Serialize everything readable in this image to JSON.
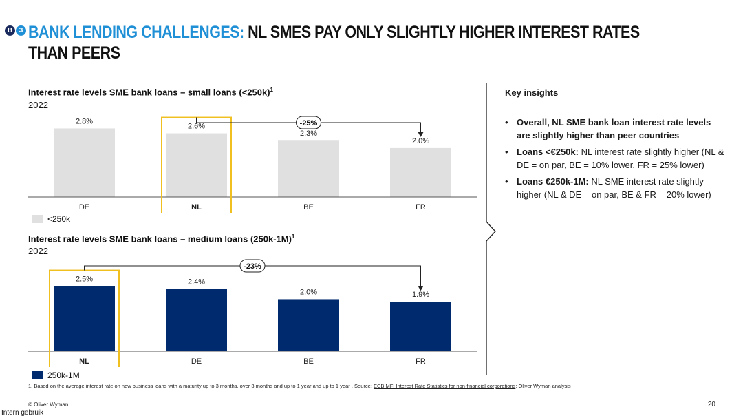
{
  "header": {
    "badge_letter": "B",
    "badge_number": "3",
    "title_accent": "BANK LENDING CHALLENGES:",
    "title_line1": " NL SMES PAY ONLY SLIGHTLY HIGHER INTEREST RATES",
    "title_line2": "THAN PEERS"
  },
  "colors": {
    "accent_blue": "#1f8fd6",
    "navy": "#002a6e",
    "light_gray": "#e0e0e0",
    "highlight_yellow": "#f0c020"
  },
  "chart_data": [
    {
      "type": "bar",
      "title": "Interest rate levels SME bank loans – small loans (<250k)",
      "title_footnote": "1",
      "subtitle": "2022",
      "categories": [
        "DE",
        "NL",
        "BE",
        "FR"
      ],
      "values": [
        2.8,
        2.6,
        2.3,
        2.0
      ],
      "value_labels": [
        "2.8%",
        "2.6%",
        "2.3%",
        "2.0%"
      ],
      "highlight_category": "NL",
      "legend": "<250k",
      "annotation": {
        "text": "-25%",
        "from": "NL",
        "to": "FR"
      },
      "ylim": [
        0,
        3.6
      ],
      "color": "#e0e0e0"
    },
    {
      "type": "bar",
      "title": "Interest rate levels SME bank loans – medium loans (250k-1M)",
      "title_footnote": "1",
      "subtitle": "2022",
      "categories": [
        "NL",
        "DE",
        "BE",
        "FR"
      ],
      "values": [
        2.5,
        2.4,
        2.0,
        1.9
      ],
      "value_labels": [
        "2.5%",
        "2.4%",
        "2.0%",
        "1.9%"
      ],
      "highlight_category": "NL",
      "legend": "250k-1M",
      "annotation": {
        "text": "-23%",
        "from": "NL",
        "to": "FR"
      },
      "ylim": [
        0,
        3.6
      ],
      "color": "#002a6e"
    }
  ],
  "insights": {
    "title": "Key insights",
    "items": [
      {
        "bold": "Overall, NL SME bank loan interest rate levels are slightly higher than peer countries",
        "text": ""
      },
      {
        "bold": "Loans <€250k:",
        "text": " NL interest rate slightly higher (NL & DE = on par, BE = 10% lower, FR = 25% lower)"
      },
      {
        "bold": "Loans €250k-1M:",
        "text": " NL SME interest rate slightly higher (NL & DE = on par, BE & FR = 20% lower)"
      }
    ]
  },
  "footer": {
    "footnote_prefix": "1. Based on the average interest rate on new business loans with a maturity up to 3 months, over 3 months and up to 1 year and up to 1 year . Source: ",
    "footnote_link": "ECB MFI Interest Rate Statistics for non-financial corporations",
    "footnote_suffix": "; Oliver Wyman analysis",
    "copyright": "© Oliver Wyman",
    "page_number": "20",
    "classification": "Intern gebruik"
  }
}
